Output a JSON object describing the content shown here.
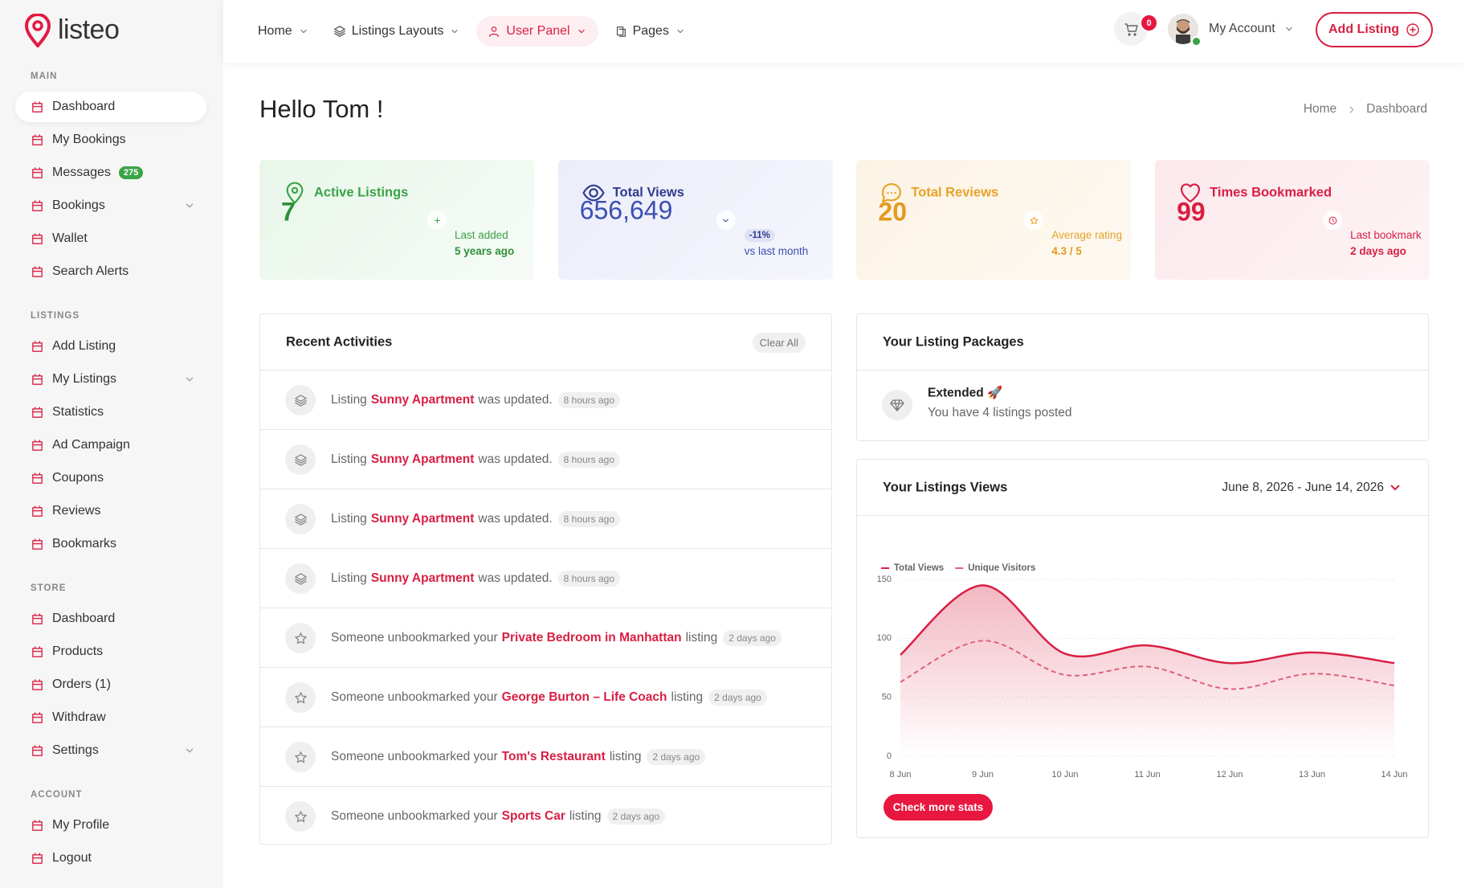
{
  "brand": {
    "name": "listeo"
  },
  "sidebar": {
    "sections": [
      {
        "title": "MAIN",
        "items": [
          {
            "label": "Dashboard",
            "active": true
          },
          {
            "label": "My Bookings"
          },
          {
            "label": "Messages",
            "badge": "275"
          },
          {
            "label": "Bookings",
            "submenu": true
          },
          {
            "label": "Wallet"
          },
          {
            "label": "Search Alerts"
          }
        ]
      },
      {
        "title": "LISTINGS",
        "items": [
          {
            "label": "Add Listing"
          },
          {
            "label": "My Listings",
            "submenu": true
          },
          {
            "label": "Statistics"
          },
          {
            "label": "Ad Campaign"
          },
          {
            "label": "Coupons"
          },
          {
            "label": "Reviews"
          },
          {
            "label": "Bookmarks"
          }
        ]
      },
      {
        "title": "STORE",
        "items": [
          {
            "label": "Dashboard"
          },
          {
            "label": "Products"
          },
          {
            "label": "Orders (1)"
          },
          {
            "label": "Withdraw"
          },
          {
            "label": "Settings",
            "submenu": true
          }
        ]
      },
      {
        "title": "ACCOUNT",
        "items": [
          {
            "label": "My Profile"
          },
          {
            "label": "Logout"
          }
        ]
      }
    ]
  },
  "topnav": {
    "items": [
      {
        "label": "Home"
      },
      {
        "label": "Listings Layouts"
      },
      {
        "label": "User Panel",
        "active": true
      },
      {
        "label": "Pages"
      }
    ],
    "cart_count": "0",
    "account": "My Account",
    "add_listing": "Add Listing"
  },
  "page": {
    "title": "Hello Tom !",
    "breadcrumb": [
      "Home",
      "Dashboard"
    ]
  },
  "stats": [
    {
      "title": "Active Listings",
      "value": "7",
      "note_label": "Last added",
      "note_value": "5 years ago"
    },
    {
      "title": "Total Views",
      "value": "656,649",
      "badge": "-11%",
      "note": "vs last month"
    },
    {
      "title": "Total Reviews",
      "value": "20",
      "note_label": "Average rating",
      "note_value": "4.3 / 5"
    },
    {
      "title": "Times Bookmarked",
      "value": "99",
      "note_label": "Last bookmark",
      "note_value": "2 days ago"
    }
  ],
  "activities": {
    "title": "Recent Activities",
    "clear": "Clear All",
    "items": [
      {
        "prefix": "Listing",
        "link": "Sunny Apartment",
        "suffix": "was updated.",
        "time": "8 hours ago"
      },
      {
        "prefix": "Listing",
        "link": "Sunny Apartment",
        "suffix": "was updated.",
        "time": "8 hours ago"
      },
      {
        "prefix": "Listing",
        "link": "Sunny Apartment",
        "suffix": "was updated.",
        "time": "8 hours ago"
      },
      {
        "prefix": "Listing",
        "link": "Sunny Apartment",
        "suffix": "was updated.",
        "time": "8 hours ago"
      },
      {
        "prefix": "Someone unbookmarked your",
        "link": "Private Bedroom in Manhattan",
        "suffix": "listing",
        "time": "2 days ago"
      },
      {
        "prefix": "Someone unbookmarked your",
        "link": "George Burton – Life Coach",
        "suffix": "listing",
        "time": "2 days ago"
      },
      {
        "prefix": "Someone unbookmarked your",
        "link": "Tom's Restaurant",
        "suffix": "listing",
        "time": "2 days ago"
      },
      {
        "prefix": "Someone unbookmarked your",
        "link": "Sports Car",
        "suffix": "listing",
        "time": "2 days ago"
      }
    ]
  },
  "packages": {
    "title": "Your Listing Packages",
    "name": "Extended 🚀",
    "description": "You have 4 listings posted"
  },
  "views": {
    "title": "Your Listings Views",
    "date_range": "June 8, 2026 - June 14, 2026",
    "button": "Check more stats"
  },
  "chart_data": {
    "type": "line",
    "categories": [
      "8 Jun",
      "9 Jun",
      "10 Jun",
      "11 Jun",
      "12 Jun",
      "13 Jun",
      "14 Jun"
    ],
    "series": [
      {
        "name": "Total Views",
        "color": "#d81f43",
        "line_style": "solid",
        "fill": true,
        "values": [
          86,
          145,
          87,
          94,
          79,
          88,
          79
        ]
      },
      {
        "name": "Unique Visitors",
        "color": "#e0607a",
        "line_style": "dashed",
        "fill": false,
        "values": [
          63,
          98,
          69,
          76,
          57,
          70,
          60
        ]
      }
    ],
    "ylim": [
      0,
      150
    ],
    "yticks": [
      0,
      50,
      100,
      150
    ],
    "grid": true,
    "legend": "top-left"
  }
}
